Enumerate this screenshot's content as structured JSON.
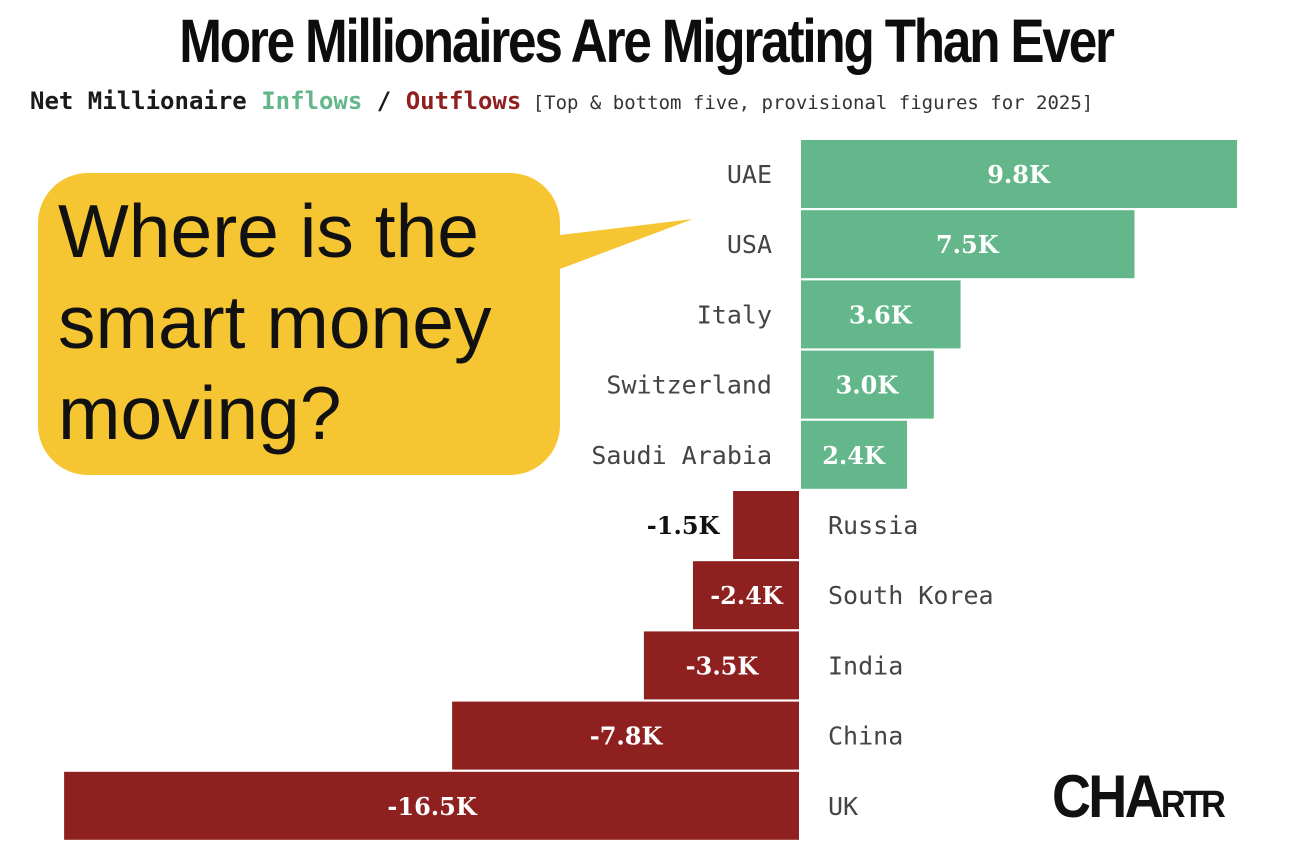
{
  "title": "More Millionaires Are Migrating Than Ever",
  "subtitle": {
    "prefix": "Net Millionaire ",
    "inflows": "Inflows",
    "separator": " / ",
    "outflows": "Outflows",
    "note": " [Top & bottom five, provisional figures for 2025]"
  },
  "callout": {
    "text": "Where is the smart money moving?"
  },
  "logo": {
    "part1": "CHA",
    "part2": "RTR"
  },
  "colors": {
    "inflow": "#64b78a",
    "outflow": "#8e2020",
    "callout": "#f6c532"
  },
  "chart_data": {
    "type": "bar",
    "orientation": "horizontal-diverging",
    "title": "More Millionaires Are Migrating Than Ever",
    "subtitle": "Net Millionaire Inflows / Outflows [Top & bottom five, provisional figures for 2025]",
    "unit": "thousands of millionaires (net)",
    "xlim": [
      -16.5,
      9.8
    ],
    "grid": false,
    "legend": "none",
    "categories": [
      "UAE",
      "USA",
      "Italy",
      "Switzerland",
      "Saudi Arabia",
      "Russia",
      "South Korea",
      "India",
      "China",
      "UK"
    ],
    "values": [
      9.8,
      7.5,
      3.6,
      3.0,
      2.4,
      -1.5,
      -2.4,
      -3.5,
      -7.8,
      -16.5
    ],
    "value_labels": [
      "9.8K",
      "7.5K",
      "3.6K",
      "3.0K",
      "2.4K",
      "-1.5K",
      "-2.4K",
      "-3.5K",
      "-7.8K",
      "-16.5K"
    ]
  }
}
